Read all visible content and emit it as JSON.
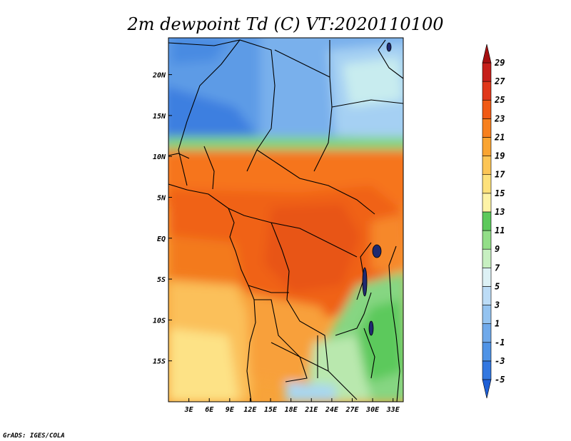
{
  "title": "2m dewpoint Td (C) VT:2020110100",
  "credit": "GrADS: IGES/COLA",
  "map": {
    "x_ticks": [
      "3E",
      "6E",
      "9E",
      "12E",
      "15E",
      "18E",
      "21E",
      "24E",
      "27E",
      "30E",
      "33E"
    ],
    "y_ticks": [
      "20N",
      "15N",
      "10N",
      "5N",
      "EQ",
      "5S",
      "10S",
      "15S"
    ],
    "lon_range": [
      0,
      34.5
    ],
    "lat_range": [
      -20,
      24.5
    ],
    "tick_lons": [
      3,
      6,
      9,
      12,
      15,
      18,
      21,
      24,
      27,
      30,
      33
    ],
    "tick_lats": [
      20,
      15,
      10,
      5,
      0,
      -5,
      -10,
      -15
    ]
  },
  "colorbar": {
    "labels": [
      "29",
      "27",
      "25",
      "23",
      "21",
      "19",
      "17",
      "15",
      "13",
      "11",
      "9",
      "7",
      "5",
      "3",
      "1",
      "-1",
      "-3",
      "-5"
    ],
    "colors": [
      "#1e5fd6",
      "#3277e0",
      "#4f93e6",
      "#6fa9ea",
      "#94c3f0",
      "#bcdcf6",
      "#ddf1f5",
      "#c7efc1",
      "#93de88",
      "#5cc95b",
      "#fdf3a6",
      "#fde17b",
      "#fcc556",
      "#f9a432",
      "#f7801e",
      "#f05a14",
      "#e0371a",
      "#c61f1a",
      "#a50f10"
    ]
  }
}
